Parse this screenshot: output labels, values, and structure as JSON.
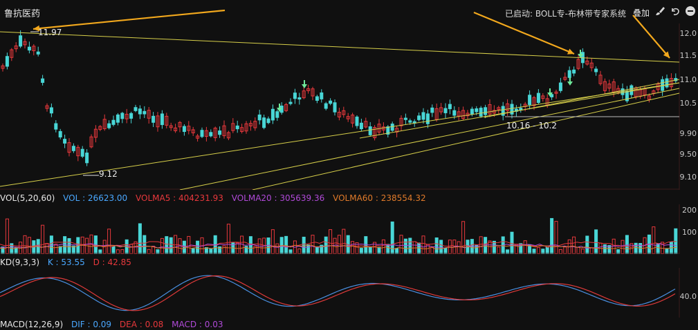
{
  "header": {
    "stock_name": "鲁抗医药",
    "status_text": "已启动: BOLL专-布林带专家系统",
    "overlay_label": "叠加",
    "icons": [
      "brush-icon",
      "undo-icon",
      "minus-circle-icon"
    ]
  },
  "main_axis": {
    "labels": [
      "12.0",
      "11.5",
      "11.0",
      "10.5",
      "9.90",
      "9.50",
      "9.10"
    ]
  },
  "annotations": {
    "high": "11.97",
    "low": "9.12",
    "range": "10.16 - 10.2"
  },
  "vol": {
    "title": "VOL(5,20,60)",
    "vol_label": "VOL : 26623.00",
    "ma5_label": "VOLMA5 : 404231.93",
    "ma20_label": "VOLMA20 : 305639.36",
    "ma60_label": "VOLMA60 : 238554.32",
    "axis": [
      "200",
      "100"
    ]
  },
  "kd": {
    "title": "KD(9,3,3)",
    "k_label": "K : 53.55",
    "d_label": "D : 42.85",
    "axis": [
      "40.0"
    ]
  },
  "macd": {
    "title": "MACD(12,26,9)",
    "dif_label": "DIF : 0.09",
    "dea_label": "DEA : 0.08",
    "macd_label": "MACD : 0.03"
  },
  "colors": {
    "up": "#e8383c",
    "down": "#49d6d6",
    "trend": "#d8d04a",
    "arrow": "#f2a81d",
    "k_line": "#4a90e2",
    "d_line": "#e03a3a",
    "ma20": "#b04ad8",
    "ma60": "#e07a2a"
  }
}
